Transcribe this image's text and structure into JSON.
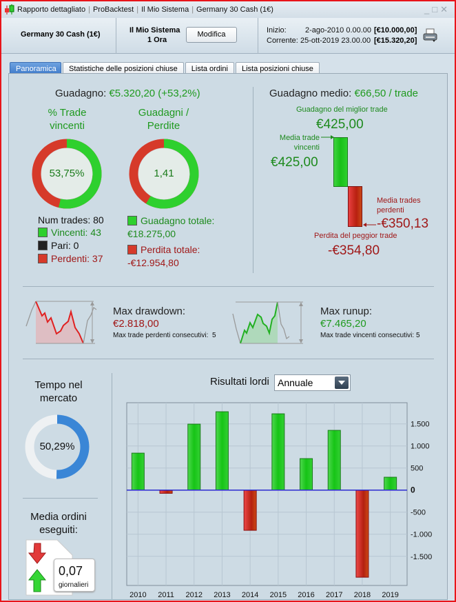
{
  "window": {
    "title_parts": [
      "Rapporto dettagliato",
      "ProBacktest",
      "Il Mio Sistema",
      "Germany 30 Cash (1€)"
    ]
  },
  "header": {
    "instrument": "Germany 30 Cash (1€)",
    "system_name": "Il Mio Sistema",
    "timeframe": "1 Ora",
    "modify_label": "Modifica",
    "start_label": "Inizio:",
    "start_date": "2-ago-2010 0.00.00",
    "start_value": "[€10.000,00]",
    "current_label": "Corrente:",
    "current_date": "25-ott-2019 23.00.00",
    "current_value": "[€15.320,20]"
  },
  "tabs": [
    {
      "label": "Panoramica",
      "active": true
    },
    {
      "label": "Statistiche delle posizioni chiuse"
    },
    {
      "label": "Lista ordini"
    },
    {
      "label": "Lista posizioni chiuse"
    }
  ],
  "overview": {
    "gain_label": "Guadagno:",
    "gain_value": "€5.320,20 (+53,2%)",
    "win_pct_title_1": "% Trade",
    "win_pct_title_2": "vincenti",
    "win_pct": 53.75,
    "win_pct_text": "53,75%",
    "ratio_title_1": "Guadagni /",
    "ratio_title_2": "Perdite",
    "ratio_text": "1,41",
    "num_trades": "Num trades: 80",
    "winners": "Vincenti: 43",
    "even": "Pari: 0",
    "losers": "Perdenti: 37",
    "total_gain_label": "Guadagno totale:",
    "total_gain": "€18.275,00",
    "total_loss_label": "Perdita totale:",
    "total_loss": "-€12.954,80",
    "avg_gain_label": "Guadagno medio:",
    "avg_gain_value": "€66,50 / trade",
    "best_label": "Guadagno del miglior trade",
    "best_value": "€425,00",
    "avg_win_label_1": "Media trade",
    "avg_win_label_2": "vincenti",
    "avg_win_value": "€425,00",
    "avg_loss_label_1": "Media trades",
    "avg_loss_label_2": "perdenti",
    "avg_loss_value": "-€350,13",
    "worst_label": "Perdita del peggior trade",
    "worst_value": "-€354,80"
  },
  "drawdown": {
    "label": "Max drawdown:",
    "value": "€2.818,00",
    "consec_label": "Max trade perdenti consecutivi:",
    "consec_value": "5"
  },
  "runup": {
    "label": "Max runup:",
    "value": "€7.465,20",
    "consec_label": "Max trade vincenti consecutivi:",
    "consec_value": "5"
  },
  "market_time": {
    "title_1": "Tempo nel",
    "title_2": "mercato",
    "pct": 50.29,
    "text": "50,29%"
  },
  "orders": {
    "title_1": "Media ordini",
    "title_2": "eseguiti:",
    "value": "0,07",
    "unit": "giornalieri"
  },
  "results": {
    "label": "Risultati lordi",
    "period": "Annuale"
  },
  "colors": {
    "positive": "#22cc22",
    "negative": "#cc2a22",
    "zero_line": "#2a2ad0",
    "accent_tab": "#3c78c8",
    "market_ring": "#3a86d6"
  },
  "chart_data": {
    "type": "bar",
    "categories": [
      "2010",
      "2011",
      "2012",
      "2013",
      "2014",
      "2015",
      "2016",
      "2017",
      "2018",
      "2019"
    ],
    "values": [
      838,
      -73,
      1495,
      1776,
      -911,
      1729,
      714,
      1354,
      -1974,
      292
    ],
    "yticks": [
      1500,
      1000,
      500,
      0,
      -500,
      -1000,
      -1500
    ],
    "ytick_labels": [
      "1.500",
      "1.000",
      "500",
      "0",
      "-500",
      "-1.000",
      "-1.500"
    ],
    "ylim": [
      -2160,
      1980
    ],
    "grid": true
  }
}
